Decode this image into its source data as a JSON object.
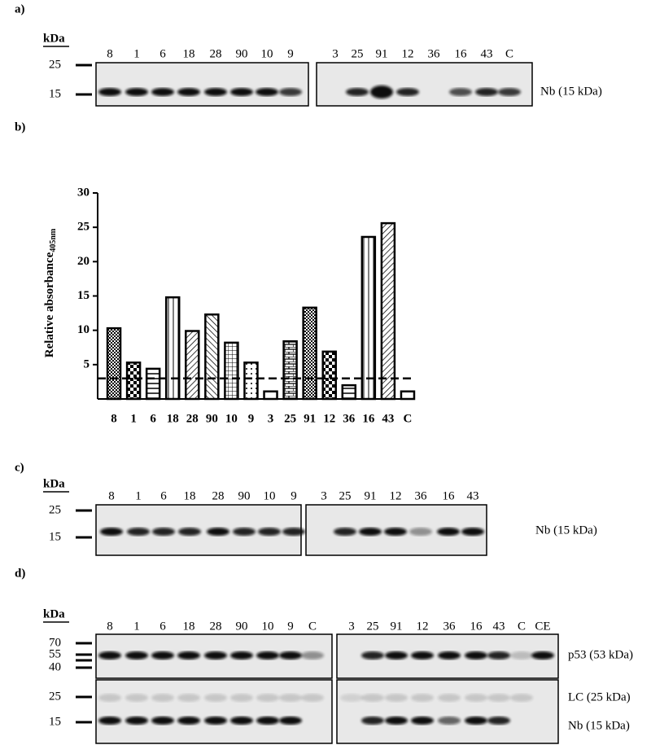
{
  "blots": [
    {
      "panel": "a)",
      "unit": "kDa",
      "markers": [
        25,
        15
      ],
      "lanes": [
        [
          "8",
          "1",
          "6",
          "18",
          "28",
          "90",
          "10",
          "9"
        ],
        [
          "3",
          "25",
          "91",
          "12",
          "36",
          "16",
          "43",
          "C"
        ]
      ],
      "band_labels": [
        "Nb (15 kDa)"
      ]
    },
    {
      "panel": "c)",
      "unit": "kDa",
      "markers": [
        25,
        15
      ],
      "lanes": [
        [
          "8",
          "1",
          "6",
          "18",
          "28",
          "90",
          "10",
          "9"
        ],
        [
          "3",
          "25",
          "91",
          "12",
          "36",
          "16",
          "43"
        ]
      ],
      "band_labels": [
        "Nb (15 kDa)"
      ]
    },
    {
      "panel": "d)",
      "unit": "kDa",
      "markers": [
        70,
        55,
        40,
        25,
        15
      ],
      "lanes": [
        [
          "8",
          "1",
          "6",
          "18",
          "28",
          "90",
          "10",
          "9",
          "C"
        ],
        [
          "3",
          "25",
          "91",
          "12",
          "36",
          "16",
          "43",
          "C",
          "CE"
        ]
      ],
      "band_labels": [
        "p53 (53 kDa)",
        "LC (25 kDa)",
        "Nb (15 kDa)"
      ]
    }
  ],
  "chart_data": {
    "type": "bar",
    "panel": "b)",
    "ylabel": "Relative absorbance",
    "ylabel_sub": "405nm",
    "categories": [
      "8",
      "1",
      "6",
      "18",
      "28",
      "90",
      "10",
      "9",
      "3",
      "25",
      "91",
      "12",
      "36",
      "16",
      "43",
      "C"
    ],
    "values": [
      10.3,
      5.3,
      4.4,
      14.8,
      9.9,
      12.3,
      8.2,
      5.3,
      1.1,
      8.4,
      13.3,
      6.9,
      2.0,
      23.6,
      25.6,
      1.1
    ],
    "threshold": 3,
    "ylim": [
      0,
      30
    ],
    "yticks": [
      5,
      10,
      15,
      20,
      25,
      30
    ],
    "color": "#ffffff"
  }
}
